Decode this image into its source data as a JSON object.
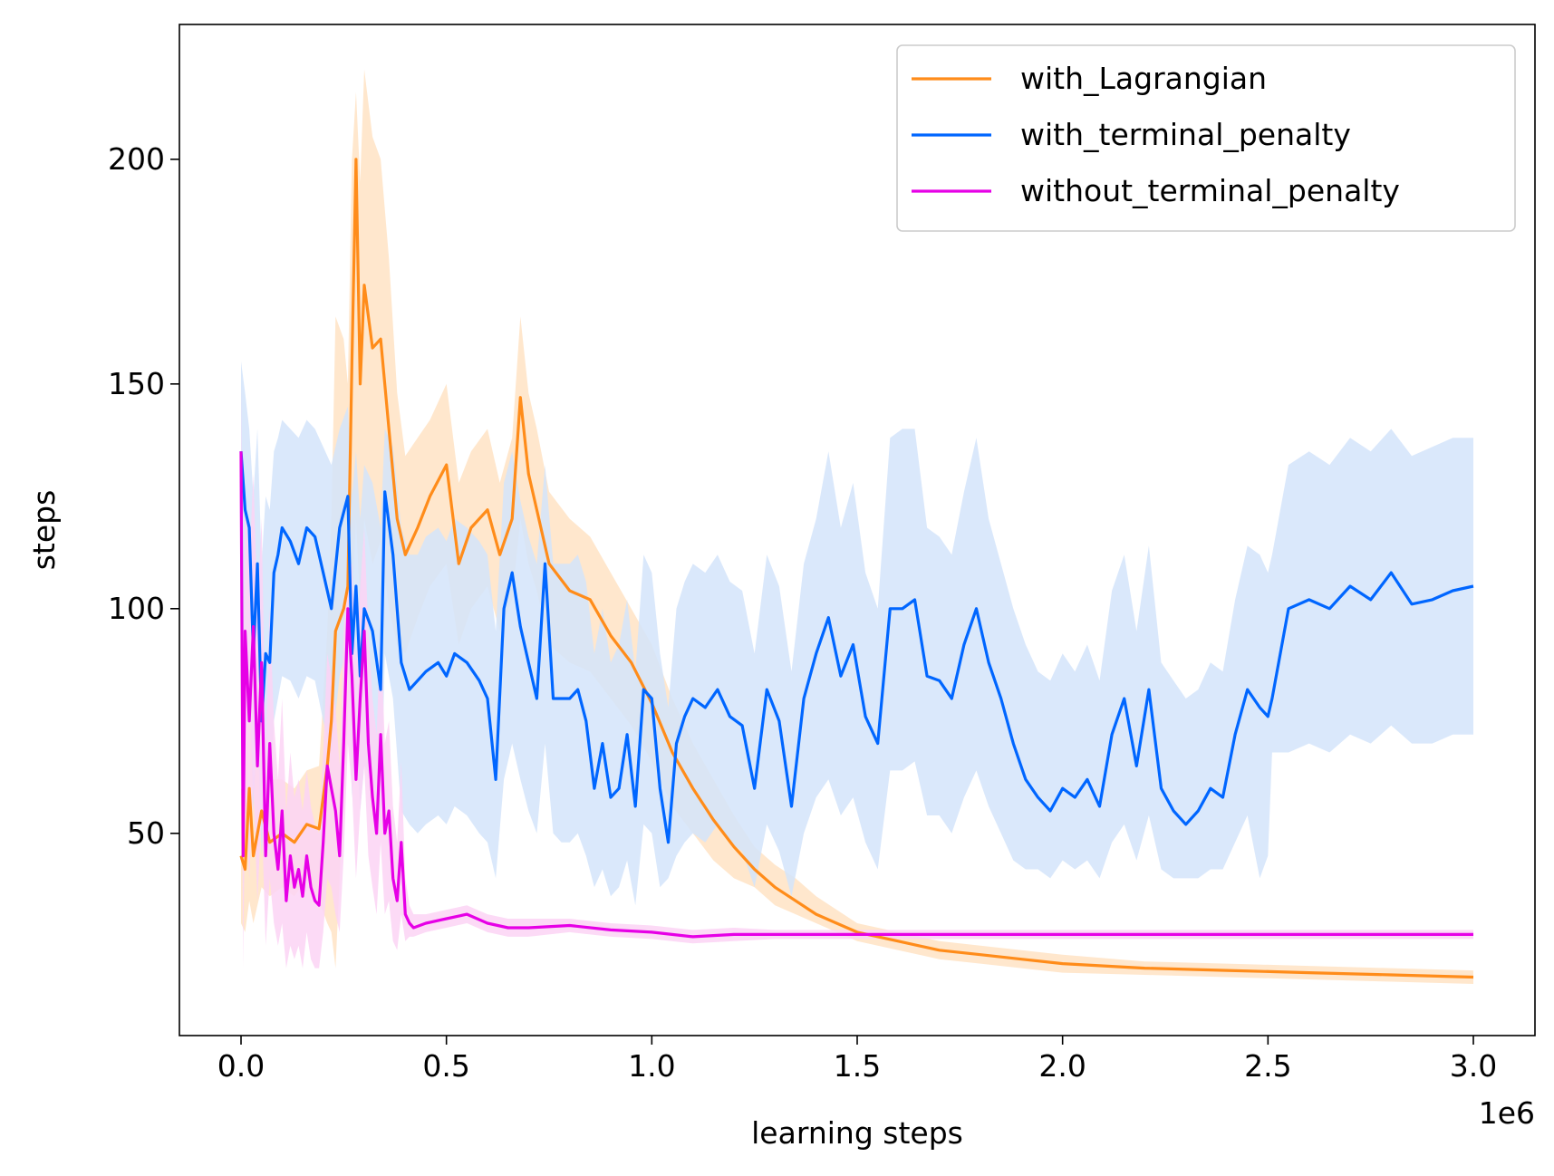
{
  "chart_data": {
    "type": "line",
    "title": "",
    "xlabel": "learning steps",
    "ylabel": "steps",
    "x_offset_label": "1e6",
    "xlim": [
      -0.15,
      3.15
    ],
    "ylim": [
      5,
      230
    ],
    "x_ticks": [
      0.0,
      0.5,
      1.0,
      1.5,
      2.0,
      2.5,
      3.0
    ],
    "x_tick_labels": [
      "0.0",
      "0.5",
      "1.0",
      "1.5",
      "2.0",
      "2.5",
      "3.0"
    ],
    "y_ticks": [
      50,
      100,
      150,
      200
    ],
    "y_tick_labels": [
      "50",
      "100",
      "150",
      "200"
    ],
    "grid": false,
    "legend_position": "top-right",
    "series": [
      {
        "name": "with_Lagrangian",
        "color": "#ff8c1a",
        "band_color": "#ffe3c4",
        "x": [
          0.0,
          0.01,
          0.02,
          0.03,
          0.05,
          0.07,
          0.1,
          0.13,
          0.16,
          0.19,
          0.21,
          0.22,
          0.23,
          0.25,
          0.26,
          0.27,
          0.28,
          0.29,
          0.3,
          0.32,
          0.34,
          0.36,
          0.38,
          0.4,
          0.43,
          0.46,
          0.5,
          0.53,
          0.56,
          0.6,
          0.63,
          0.66,
          0.68,
          0.7,
          0.72,
          0.75,
          0.8,
          0.85,
          0.9,
          0.95,
          1.0,
          1.05,
          1.1,
          1.15,
          1.2,
          1.25,
          1.3,
          1.35,
          1.4,
          1.45,
          1.5,
          1.6,
          1.7,
          1.8,
          1.9,
          2.0,
          2.2,
          2.4,
          2.6,
          2.8,
          3.0
        ],
        "values": [
          45,
          42,
          60,
          45,
          55,
          48,
          50,
          48,
          52,
          51,
          65,
          75,
          95,
          100,
          105,
          155,
          200,
          150,
          172,
          158,
          160,
          140,
          120,
          112,
          118,
          125,
          132,
          110,
          118,
          122,
          112,
          120,
          147,
          130,
          122,
          110,
          104,
          102,
          94,
          88,
          79,
          68,
          60,
          53,
          47,
          42,
          38,
          35,
          32,
          30,
          28,
          26,
          24,
          23,
          22,
          21,
          20,
          19.5,
          19,
          18.5,
          18
        ],
        "band_low": [
          30,
          28,
          35,
          30,
          38,
          36,
          38,
          36,
          40,
          35,
          30,
          28,
          20,
          60,
          75,
          100,
          120,
          100,
          120,
          110,
          115,
          100,
          92,
          90,
          98,
          105,
          110,
          92,
          100,
          105,
          95,
          102,
          120,
          110,
          104,
          92,
          88,
          86,
          80,
          74,
          66,
          56,
          50,
          44,
          40,
          38,
          34,
          32,
          30,
          28,
          26,
          24,
          22,
          21,
          20,
          19,
          18.5,
          18,
          17.5,
          17,
          16.5
        ],
        "band_high": [
          60,
          58,
          85,
          62,
          72,
          62,
          62,
          60,
          64,
          65,
          95,
          120,
          165,
          160,
          150,
          200,
          215,
          195,
          220,
          205,
          200,
          178,
          148,
          134,
          138,
          142,
          150,
          128,
          135,
          140,
          128,
          138,
          165,
          148,
          140,
          126,
          120,
          116,
          108,
          100,
          92,
          80,
          70,
          62,
          54,
          47,
          43,
          40,
          36,
          33,
          30,
          28,
          26,
          25,
          24,
          23,
          21.5,
          21,
          20.5,
          20,
          19.5
        ]
      },
      {
        "name": "with_terminal_penalty",
        "color": "#0066ff",
        "band_color": "#d4e4fa",
        "x": [
          0.0,
          0.01,
          0.02,
          0.03,
          0.04,
          0.05,
          0.06,
          0.07,
          0.08,
          0.09,
          0.1,
          0.12,
          0.14,
          0.16,
          0.18,
          0.2,
          0.22,
          0.24,
          0.26,
          0.27,
          0.28,
          0.29,
          0.3,
          0.32,
          0.34,
          0.35,
          0.37,
          0.39,
          0.41,
          0.43,
          0.45,
          0.48,
          0.5,
          0.52,
          0.55,
          0.58,
          0.6,
          0.62,
          0.64,
          0.66,
          0.68,
          0.7,
          0.72,
          0.74,
          0.76,
          0.78,
          0.8,
          0.82,
          0.84,
          0.86,
          0.88,
          0.9,
          0.92,
          0.94,
          0.96,
          0.98,
          1.0,
          1.02,
          1.04,
          1.06,
          1.08,
          1.1,
          1.13,
          1.16,
          1.19,
          1.22,
          1.25,
          1.28,
          1.31,
          1.34,
          1.37,
          1.4,
          1.43,
          1.46,
          1.49,
          1.52,
          1.55,
          1.58,
          1.61,
          1.64,
          1.67,
          1.7,
          1.73,
          1.76,
          1.79,
          1.82,
          1.85,
          1.88,
          1.91,
          1.94,
          1.97,
          2.0,
          2.03,
          2.06,
          2.09,
          2.12,
          2.15,
          2.18,
          2.21,
          2.24,
          2.27,
          2.3,
          2.33,
          2.36,
          2.39,
          2.42,
          2.45,
          2.48,
          2.5,
          2.51,
          2.55,
          2.6,
          2.65,
          2.7,
          2.75,
          2.8,
          2.85,
          2.9,
          2.95,
          3.0
        ],
        "values": [
          135,
          122,
          118,
          90,
          110,
          75,
          90,
          88,
          108,
          112,
          118,
          115,
          110,
          118,
          116,
          108,
          100,
          118,
          125,
          90,
          105,
          85,
          100,
          95,
          82,
          126,
          112,
          88,
          82,
          84,
          86,
          88,
          85,
          90,
          88,
          84,
          80,
          62,
          100,
          108,
          96,
          88,
          80,
          110,
          80,
          80,
          80,
          82,
          75,
          60,
          70,
          58,
          60,
          72,
          56,
          82,
          80,
          60,
          48,
          70,
          76,
          80,
          78,
          82,
          76,
          74,
          60,
          82,
          75,
          56,
          80,
          90,
          98,
          85,
          92,
          76,
          70,
          100,
          100,
          102,
          85,
          84,
          80,
          92,
          100,
          88,
          80,
          70,
          62,
          58,
          55,
          60,
          58,
          62,
          56,
          72,
          80,
          65,
          82,
          60,
          55,
          52,
          55,
          60,
          58,
          72,
          82,
          78,
          76,
          80,
          100,
          102,
          100,
          105,
          102,
          108,
          101,
          102,
          104,
          105
        ],
        "band_low": [
          95,
          90,
          85,
          55,
          75,
          45,
          60,
          55,
          75,
          80,
          85,
          84,
          80,
          85,
          84,
          75,
          68,
          85,
          92,
          58,
          70,
          55,
          65,
          62,
          50,
          90,
          80,
          55,
          52,
          50,
          52,
          54,
          52,
          56,
          54,
          50,
          48,
          40,
          62,
          70,
          62,
          55,
          50,
          70,
          50,
          48,
          48,
          50,
          45,
          38,
          42,
          36,
          38,
          44,
          34,
          52,
          50,
          38,
          40,
          45,
          48,
          50,
          48,
          52,
          48,
          46,
          38,
          52,
          46,
          36,
          50,
          58,
          62,
          54,
          58,
          48,
          42,
          64,
          64,
          66,
          54,
          54,
          50,
          58,
          64,
          56,
          50,
          44,
          42,
          42,
          40,
          44,
          42,
          44,
          40,
          48,
          52,
          44,
          54,
          42,
          40,
          40,
          40,
          42,
          42,
          48,
          54,
          40,
          45,
          68,
          68,
          70,
          68,
          72,
          70,
          74,
          70,
          70,
          72,
          72
        ],
        "band_high": [
          155,
          148,
          140,
          125,
          140,
          110,
          125,
          122,
          135,
          138,
          142,
          140,
          138,
          142,
          140,
          136,
          132,
          140,
          145,
          125,
          135,
          120,
          132,
          128,
          118,
          140,
          136,
          118,
          112,
          112,
          116,
          118,
          115,
          120,
          118,
          115,
          112,
          95,
          128,
          135,
          124,
          116,
          110,
          132,
          110,
          110,
          110,
          112,
          106,
          90,
          100,
          88,
          92,
          102,
          86,
          112,
          108,
          90,
          78,
          100,
          106,
          110,
          108,
          112,
          106,
          104,
          90,
          112,
          105,
          86,
          110,
          120,
          135,
          118,
          128,
          108,
          100,
          138,
          140,
          140,
          118,
          116,
          112,
          126,
          138,
          120,
          110,
          100,
          92,
          86,
          84,
          90,
          86,
          92,
          84,
          104,
          112,
          95,
          114,
          88,
          84,
          80,
          82,
          88,
          86,
          102,
          114,
          112,
          108,
          112,
          132,
          135,
          132,
          138,
          135,
          140,
          134,
          136,
          138,
          138
        ]
      },
      {
        "name": "without_terminal_penalty",
        "color": "#e600e6",
        "band_color": "#fbd3f5",
        "x": [
          0.0,
          0.005,
          0.01,
          0.02,
          0.03,
          0.04,
          0.05,
          0.06,
          0.07,
          0.08,
          0.09,
          0.1,
          0.11,
          0.12,
          0.13,
          0.14,
          0.15,
          0.16,
          0.17,
          0.18,
          0.19,
          0.2,
          0.21,
          0.22,
          0.23,
          0.24,
          0.25,
          0.26,
          0.27,
          0.28,
          0.29,
          0.3,
          0.31,
          0.32,
          0.33,
          0.34,
          0.35,
          0.36,
          0.37,
          0.38,
          0.39,
          0.4,
          0.41,
          0.42,
          0.45,
          0.5,
          0.55,
          0.6,
          0.65,
          0.7,
          0.8,
          0.9,
          1.0,
          1.1,
          1.2,
          1.3,
          1.5,
          1.7,
          2.0,
          2.3,
          2.6,
          3.0
        ],
        "values": [
          135,
          45,
          95,
          75,
          96,
          65,
          88,
          45,
          70,
          50,
          42,
          55,
          35,
          45,
          38,
          42,
          36,
          45,
          38,
          35,
          34,
          48,
          65,
          60,
          55,
          45,
          70,
          100,
          85,
          62,
          80,
          95,
          70,
          58,
          50,
          72,
          50,
          55,
          40,
          35,
          48,
          32,
          30,
          29,
          30,
          31,
          32,
          30,
          29,
          29,
          29.5,
          28.5,
          28,
          27,
          27.5,
          27.5,
          27.5,
          27.5,
          27.5,
          27.5,
          27.5,
          27.5
        ],
        "band_low": [
          120,
          20,
          60,
          40,
          60,
          35,
          55,
          25,
          40,
          30,
          25,
          30,
          20,
          25,
          22,
          25,
          20,
          28,
          22,
          20,
          20,
          28,
          40,
          38,
          32,
          28,
          45,
          70,
          60,
          40,
          55,
          65,
          45,
          38,
          32,
          48,
          32,
          35,
          26,
          24,
          32,
          26,
          27,
          27,
          28,
          29,
          30,
          28,
          27,
          27,
          28,
          27,
          26.5,
          25.5,
          26,
          26.5,
          26.5,
          26.5,
          26.5,
          26.5,
          26.5,
          26.5
        ],
        "band_high": [
          150,
          80,
          125,
          110,
          130,
          100,
          120,
          70,
          100,
          75,
          62,
          80,
          55,
          68,
          58,
          62,
          55,
          64,
          56,
          52,
          50,
          68,
          90,
          85,
          78,
          65,
          95,
          110,
          110,
          88,
          105,
          118,
          95,
          80,
          72,
          96,
          70,
          75,
          56,
          48,
          66,
          40,
          34,
          32,
          32,
          33,
          34,
          32,
          31,
          31,
          31,
          30,
          29.5,
          28.5,
          29,
          28.5,
          28.5,
          28.5,
          28.5,
          28.5,
          28.5,
          28.5
        ]
      }
    ]
  }
}
